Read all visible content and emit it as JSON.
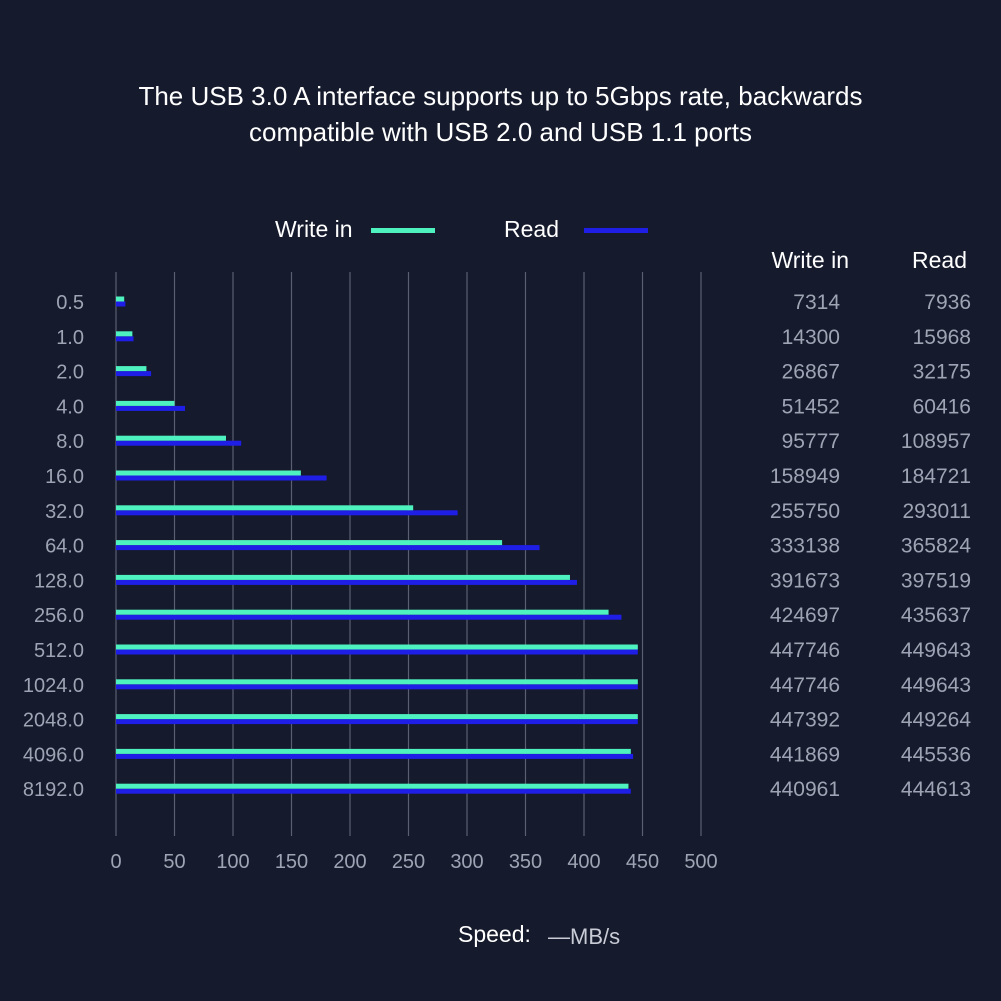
{
  "title_lines": [
    "The USB 3.0 A interface supports up to 5Gbps rate, backwards",
    "compatible with USB 2.0 and USB 1.1 ports"
  ],
  "colors": {
    "background": "#151a2c",
    "write": "#4ef2bf",
    "read": "#1f1ee6",
    "grid": "#5a5f72"
  },
  "speed": {
    "label": "Speed:",
    "unit": "—MB/s"
  },
  "table": {
    "write_header": "Write in",
    "read_header": "Read"
  },
  "chart_data": {
    "type": "bar",
    "orientation": "horizontal",
    "categories": [
      "0.5",
      "1.0",
      "2.0",
      "4.0",
      "8.0",
      "16.0",
      "32.0",
      "64.0",
      "128.0",
      "256.0",
      "512.0",
      "1024.0",
      "2048.0",
      "4096.0",
      "8192.0"
    ],
    "series": [
      {
        "name": "Write in",
        "color": "#4ef2bf",
        "values": [
          7,
          14,
          26,
          50,
          94,
          158,
          254,
          330,
          388,
          421,
          446,
          446,
          446,
          440,
          438
        ],
        "labels": [
          "7314",
          "14300",
          "26867",
          "51452",
          "95777",
          "158949",
          "255750",
          "333138",
          "391673",
          "424697",
          "447746",
          "447746",
          "447392",
          "441869",
          "440961"
        ]
      },
      {
        "name": "Read",
        "color": "#1f1ee6",
        "values": [
          8,
          15,
          30,
          59,
          107,
          180,
          292,
          362,
          394,
          432,
          446,
          446,
          446,
          442,
          440
        ],
        "labels": [
          "7936",
          "15968",
          "32175",
          "60416",
          "108957",
          "184721",
          "293011",
          "365824",
          "397519",
          "435637",
          "449643",
          "449643",
          "449264",
          "445536",
          "444613"
        ]
      }
    ],
    "xticks": [
      "0",
      "50",
      "100",
      "150",
      "200",
      "250",
      "300",
      "350",
      "400",
      "450",
      "500"
    ],
    "xlim": [
      0,
      500
    ],
    "grid": true,
    "legend_position": "top"
  }
}
